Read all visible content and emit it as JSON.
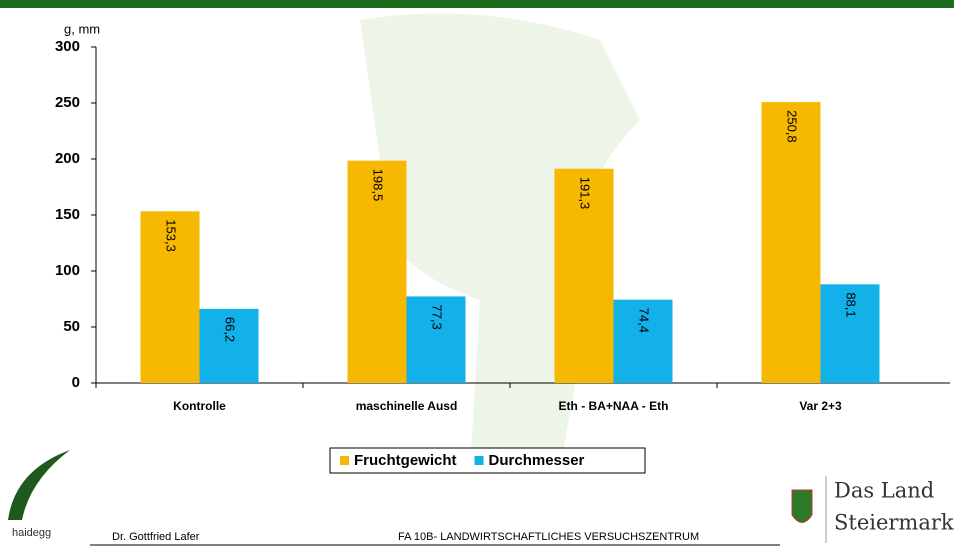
{
  "chart_data": {
    "type": "bar",
    "y_label": "g, mm",
    "categories": [
      "Kontrolle",
      "maschinelle Ausd",
      "Eth - BA+NAA - Eth",
      "Var 2+3"
    ],
    "series": [
      {
        "name": "Fruchtgewicht",
        "color": "#f6b800",
        "values": [
          153.3,
          198.5,
          191.3,
          250.8
        ],
        "value_labels": [
          "153,3",
          "198,5",
          "191,3",
          "250,8"
        ]
      },
      {
        "name": "Durchmesser",
        "color": "#12b1e9",
        "values": [
          66.2,
          77.3,
          74.4,
          88.1
        ],
        "value_labels": [
          "66,2",
          "77,3",
          "74,4",
          "88,1"
        ]
      }
    ],
    "ylim": [
      0,
      300
    ],
    "yticks": [
      0,
      50,
      100,
      150,
      200,
      250,
      300
    ],
    "legend": "bottom"
  },
  "footer": {
    "logo": "haidegg",
    "author": "Dr. Gottfried Lafer",
    "institute": "FA 10B- LANDWIRTSCHAFTLICHES VERSUCHSZENTRUM",
    "brand_line1": "Das Land",
    "brand_line2": "Steiermark"
  }
}
